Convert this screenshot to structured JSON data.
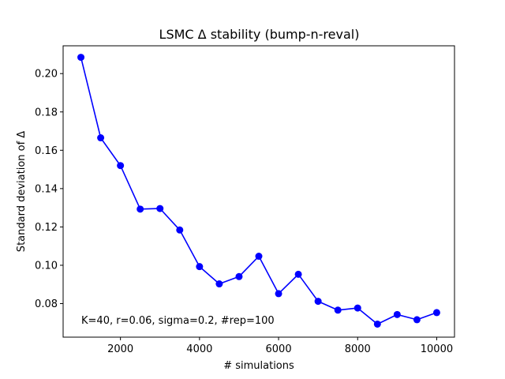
{
  "chart_data": {
    "type": "line",
    "title": "LSMC Δ stability (bump-n-reval)",
    "xlabel": "# simulations",
    "ylabel": "Standard deviation of Δ",
    "annotation": "K=40, r=0.06, sigma=0.2, #rep=100",
    "xlim": [
      550,
      10450
    ],
    "ylim": [
      0.0625,
      0.2145
    ],
    "xticks": [
      2000,
      4000,
      6000,
      8000,
      10000
    ],
    "yticks": [
      0.08,
      0.1,
      0.12,
      0.14,
      0.16,
      0.18,
      0.2
    ],
    "ytick_labels": [
      "0.08",
      "0.10",
      "0.12",
      "0.14",
      "0.16",
      "0.18",
      "0.20"
    ],
    "grid": false,
    "series": [
      {
        "color": "#0000ff",
        "marker": "circle",
        "x": [
          1000,
          1500,
          2000,
          2500,
          3000,
          3500,
          4000,
          4500,
          5000,
          5500,
          6000,
          6500,
          7000,
          7500,
          8000,
          8500,
          9000,
          9500,
          10000
        ],
        "y": [
          0.2085,
          0.1665,
          0.152,
          0.1293,
          0.1296,
          0.1184,
          0.0993,
          0.0903,
          0.0941,
          0.1047,
          0.0852,
          0.0953,
          0.0812,
          0.0766,
          0.0777,
          0.0693,
          0.0743,
          0.0716,
          0.0753
        ]
      }
    ]
  }
}
